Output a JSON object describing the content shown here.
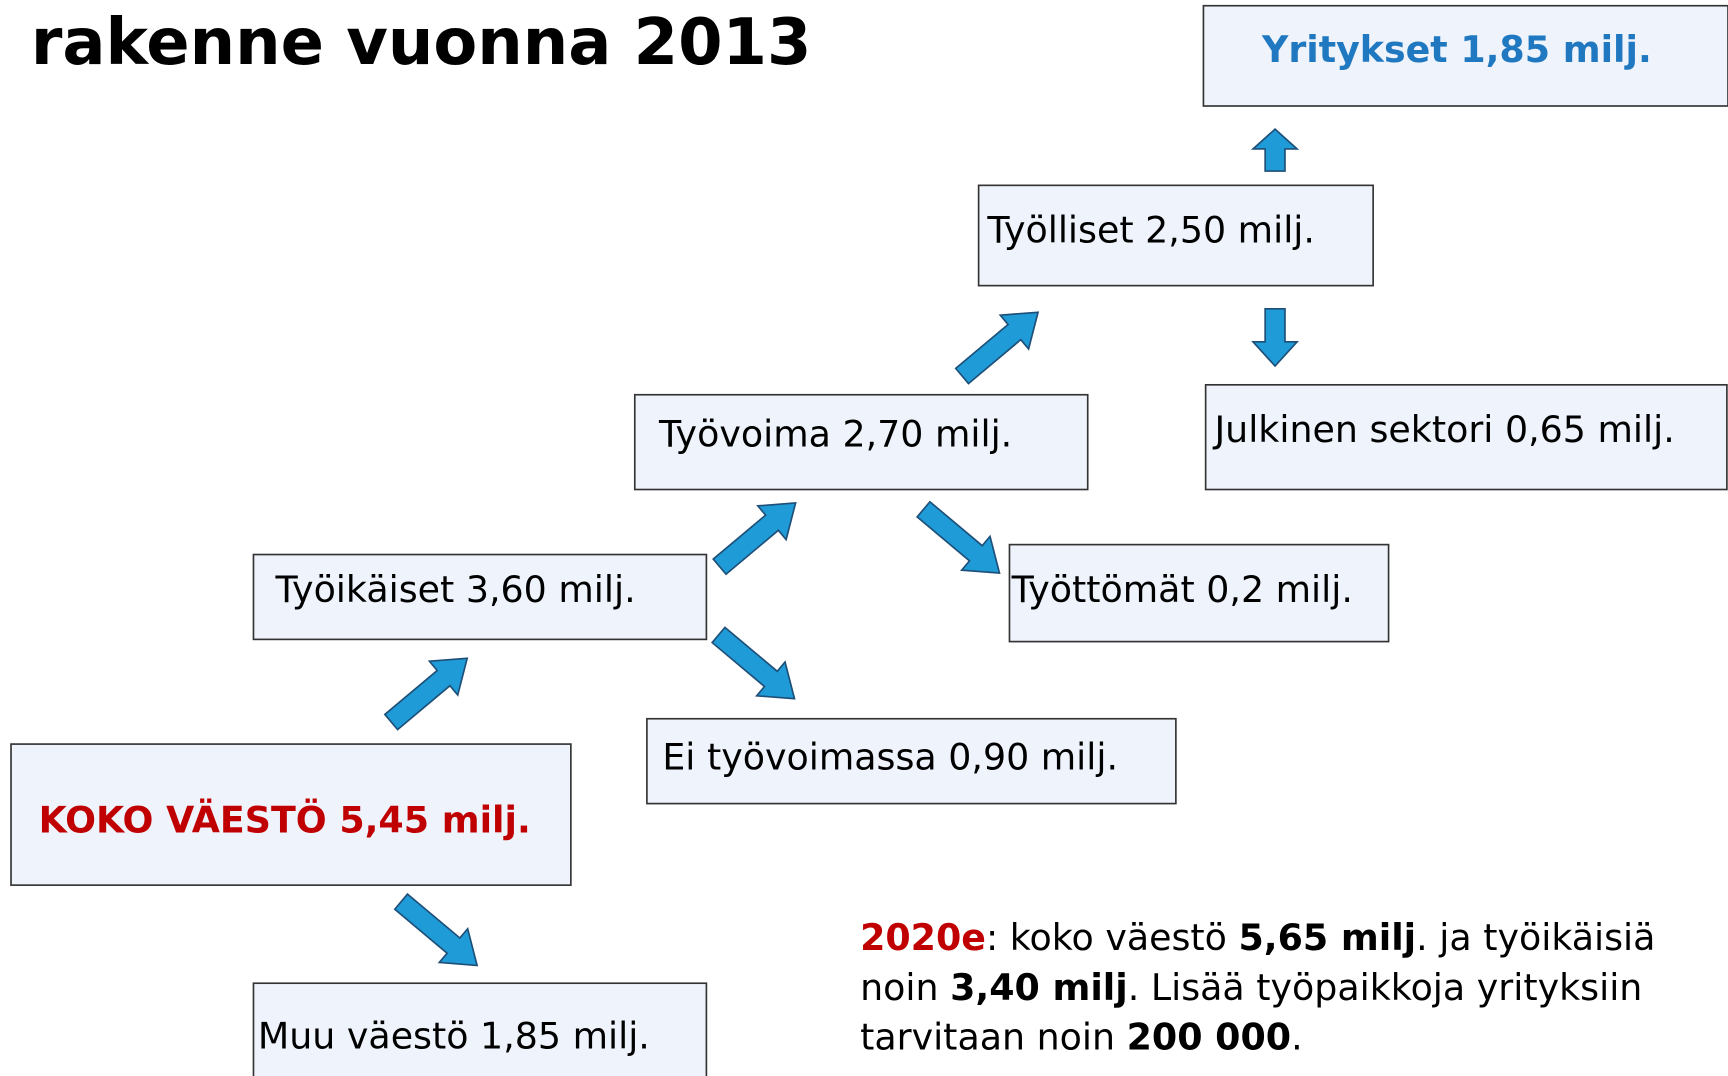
{
  "header": {
    "title": "rakenne vuonna 2013"
  },
  "nodes": [
    {
      "label": "Yritykset 1,85 milj."
    },
    {
      "label": "Työlliset 2,50 milj."
    },
    {
      "label": "Julkinen sektori 0,65 milj."
    },
    {
      "label": "Työvoima 2,70 milj."
    },
    {
      "label": "Työttömät 0,2 milj."
    },
    {
      "label": "Työikäiset 3,60 milj."
    },
    {
      "label": "Ei työvoimassa 0,90 milj."
    },
    {
      "label": "KOKO VÄESTÖ 5,45 milj."
    },
    {
      "label": "Muu väestö 1,85 milj."
    }
  ],
  "note": {
    "lines": [
      [
        "2020e",
        ": koko väestö ",
        "5,65 milj",
        ". ja työikäisiä"
      ],
      [
        "noin ",
        "3,40 milj",
        ". Lisää työpaikkoja yrityksiin"
      ],
      [
        "tarvitaan noin ",
        "200 000",
        "."
      ]
    ]
  }
}
